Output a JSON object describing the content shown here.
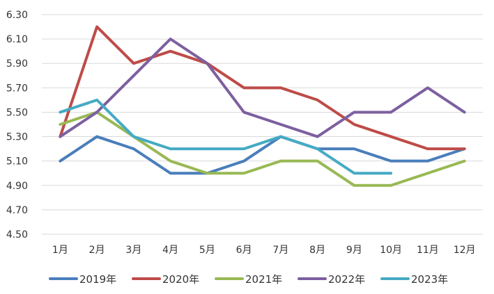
{
  "chart_data": {
    "type": "line",
    "title": "",
    "xlabel": "",
    "ylabel": "",
    "categories": [
      "1月",
      "2月",
      "3月",
      "4月",
      "5月",
      "6月",
      "7月",
      "8月",
      "9月",
      "10月",
      "11月",
      "12月"
    ],
    "ylim": [
      4.5,
      6.3
    ],
    "yticks": [
      "4.50",
      "4.70",
      "4.90",
      "5.10",
      "5.30",
      "5.50",
      "5.70",
      "5.90",
      "6.10",
      "6.30"
    ],
    "grid": true,
    "legend_position": "bottom",
    "series": [
      {
        "name": "2019年",
        "color": "#4A7EBB",
        "values": [
          5.1,
          5.3,
          5.2,
          5.0,
          5.0,
          5.1,
          5.3,
          5.2,
          5.2,
          5.1,
          5.1,
          5.2
        ]
      },
      {
        "name": "2020年",
        "color": "#BE4B48",
        "values": [
          5.3,
          6.2,
          5.9,
          6.0,
          5.9,
          5.7,
          5.7,
          5.6,
          5.4,
          5.3,
          5.2,
          5.2
        ]
      },
      {
        "name": "2021年",
        "color": "#98B954",
        "values": [
          5.4,
          5.5,
          5.3,
          5.1,
          5.0,
          5.0,
          5.1,
          5.1,
          4.9,
          4.9,
          5.0,
          5.1
        ]
      },
      {
        "name": "2022年",
        "color": "#7D5FA0",
        "values": [
          5.3,
          5.5,
          5.8,
          6.1,
          5.9,
          5.5,
          5.4,
          5.3,
          5.5,
          5.5,
          5.7,
          5.5
        ]
      },
      {
        "name": "2023年",
        "color": "#46AAC4",
        "values": [
          5.5,
          5.6,
          5.3,
          5.2,
          5.2,
          5.2,
          5.3,
          5.2,
          5.0,
          5.0,
          null,
          null
        ]
      }
    ]
  }
}
